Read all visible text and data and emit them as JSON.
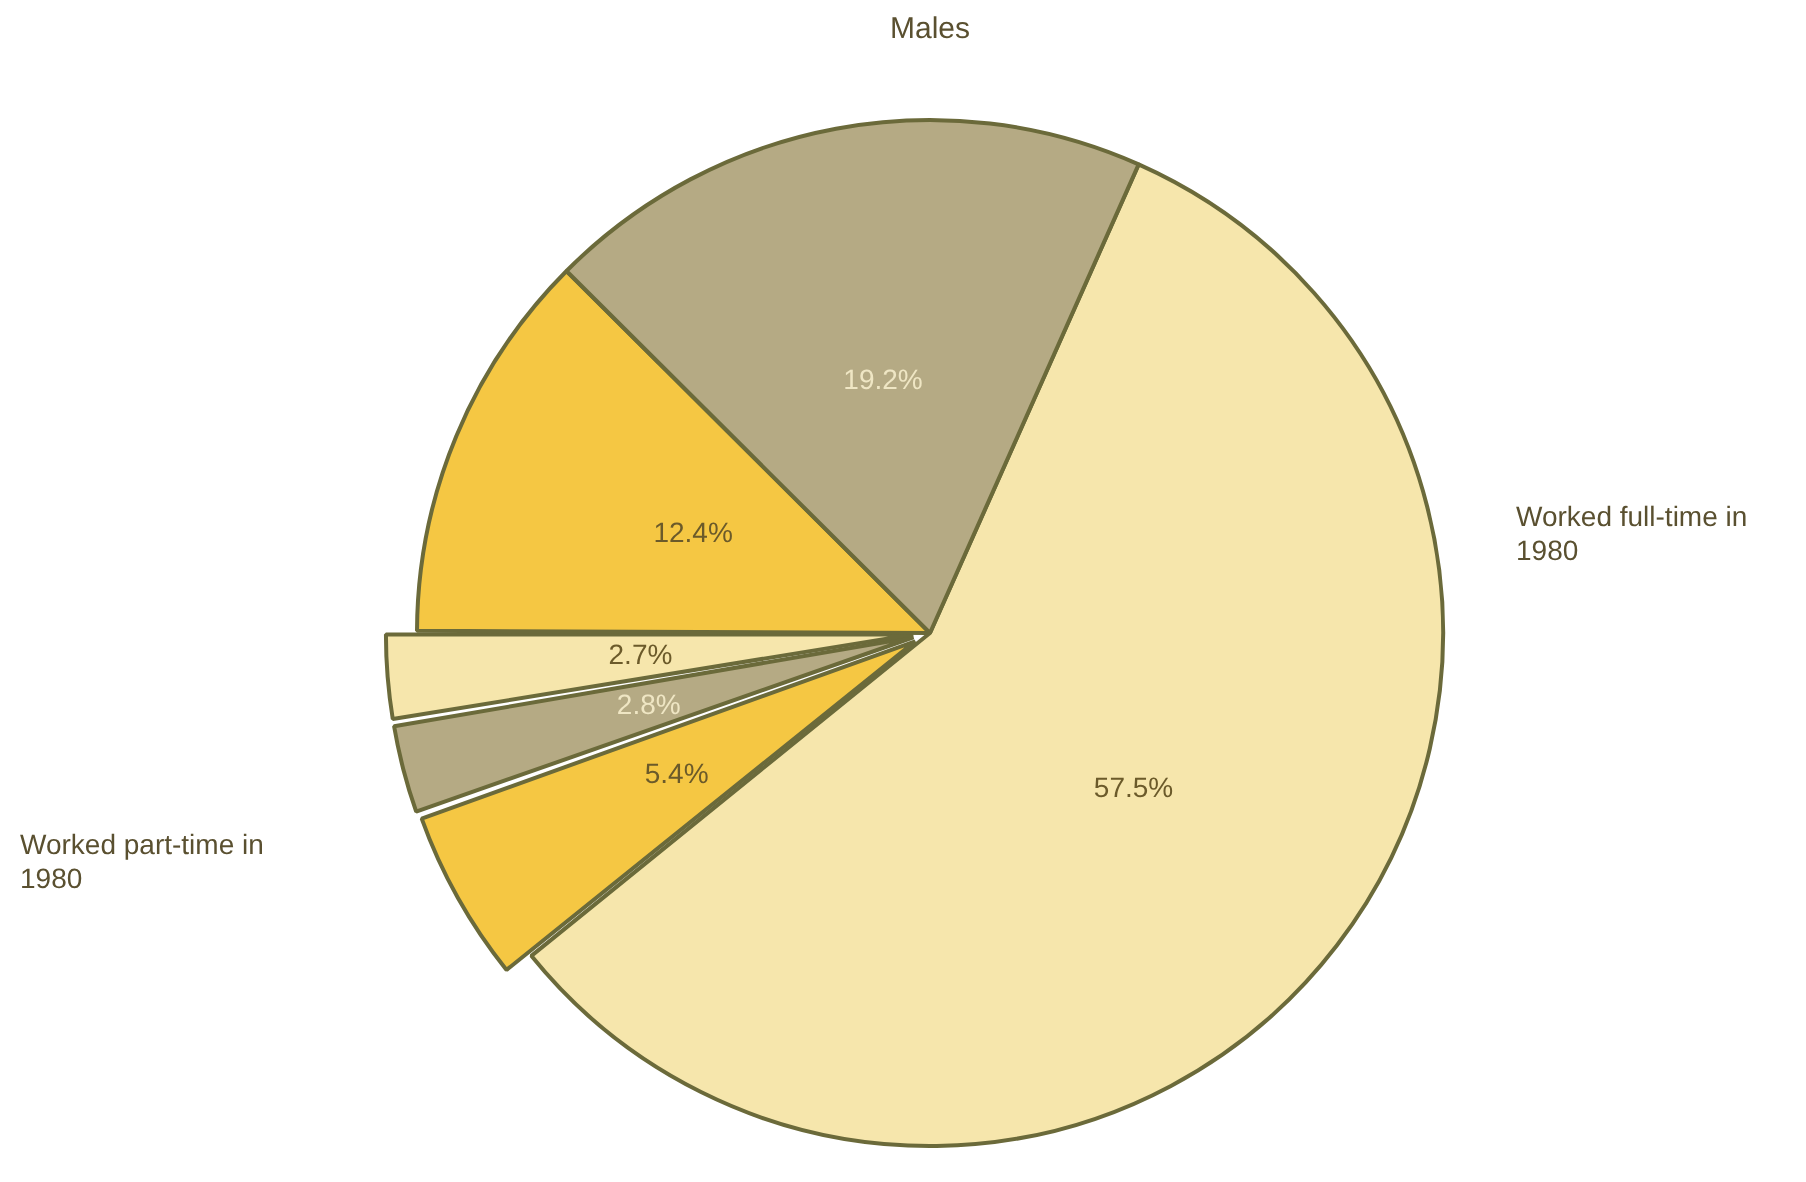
{
  "chart_data": {
    "type": "pie",
    "title": "Males",
    "categories": [
      null,
      null,
      null,
      null,
      null,
      null
    ],
    "values": [
      57.5,
      5.4,
      2.8,
      2.7,
      12.4,
      19.2
    ],
    "colors": [
      "#f6e6ac",
      "#f5c743",
      "#b5aa84",
      "#f6e6ac",
      "#f5c743",
      "#b5aa84"
    ],
    "value_labels": [
      "57.5%",
      "5.4%",
      "2.8%",
      "2.7%",
      "12.4%",
      "19.2%"
    ],
    "annotations": [
      "Worked full-time in 1980",
      "Worked part-time in 1980"
    ]
  }
}
